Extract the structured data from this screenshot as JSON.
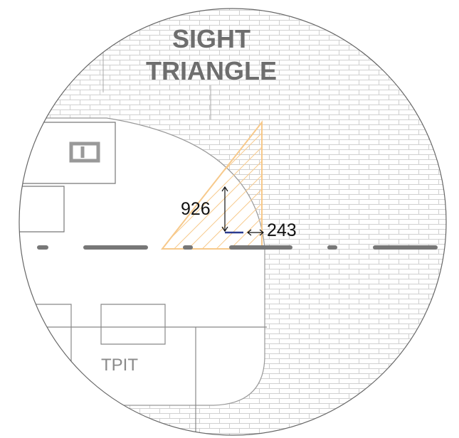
{
  "title": {
    "line1": "SIGHT",
    "line2": "TRIANGLE"
  },
  "dimensions": {
    "vertical": "926",
    "horizontal": "243"
  },
  "labels": {
    "tpit": "TPIT"
  }
}
